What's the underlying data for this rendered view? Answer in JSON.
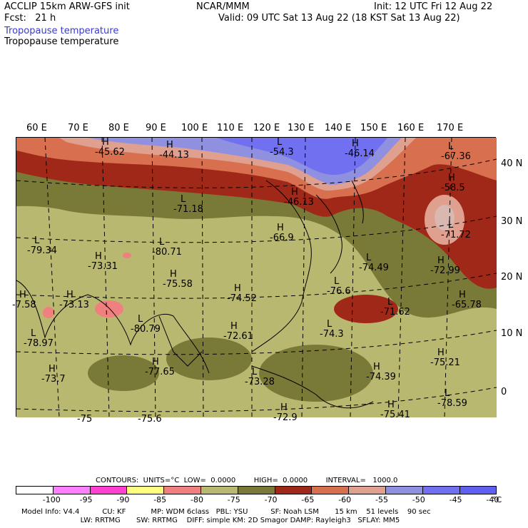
{
  "header": {
    "model": "ACCLIP 15km ARW-GFS init",
    "fcst": "Fcst:   21 h",
    "org": "NCAR/MMM",
    "init": "Init: 12 UTC Fri 12 Aug 22",
    "valid": "Valid: 09 UTC Sat 13 Aug 22 (18 KST Sat 13 Aug 22)",
    "field1": "Tropopause temperature",
    "field2": "Tropopause temperature"
  },
  "longitude_labels": [
    "60 E",
    "70 E",
    "80 E",
    "90 E",
    "100 E",
    "110 E",
    "120 E",
    "130 E",
    "140 E",
    "150 E",
    "160 E",
    "170 E"
  ],
  "latitude_labels": [
    "40 N",
    "30 N",
    "20 N",
    "10 N",
    "0"
  ],
  "map_labels": [
    {
      "t": "H",
      "v": "-45.62"
    },
    {
      "t": "H",
      "v": "-44.13"
    },
    {
      "t": "L",
      "v": "-54.3"
    },
    {
      "t": "H",
      "v": "-46.14"
    },
    {
      "t": "L",
      "v": "-67.36"
    },
    {
      "t": "H",
      "v": "-58.5"
    },
    {
      "t": "H",
      "v": "-46.13"
    },
    {
      "t": "L",
      "v": "-71.18"
    },
    {
      "t": "H",
      "v": "-66.9"
    },
    {
      "t": "L",
      "v": "-71.72"
    },
    {
      "t": "L",
      "v": "-79.34"
    },
    {
      "t": "L",
      "v": "-80.71"
    },
    {
      "t": "H",
      "v": "-73.31"
    },
    {
      "t": "L",
      "v": "-74.49"
    },
    {
      "t": "H",
      "v": "-72.99"
    },
    {
      "t": "H",
      "v": "-75.58"
    },
    {
      "t": "H",
      "v": "-74.52"
    },
    {
      "t": "L",
      "v": "-76.6"
    },
    {
      "t": "H",
      "v": "-7.58"
    },
    {
      "t": "H",
      "v": "-73.13"
    },
    {
      "t": "L",
      "v": "-71.62"
    },
    {
      "t": "H",
      "v": "-65.78"
    },
    {
      "t": "L",
      "v": "-80.79"
    },
    {
      "t": "L",
      "v": "-74.3"
    },
    {
      "t": "H",
      "v": "-72.61"
    },
    {
      "t": "L",
      "v": "-78.97"
    },
    {
      "t": "H",
      "v": "-75.21"
    },
    {
      "t": "H",
      "v": "-77.65"
    },
    {
      "t": "H",
      "v": "-73.7"
    },
    {
      "t": "H",
      "v": "-74.39"
    },
    {
      "t": "L",
      "v": "-73.28"
    },
    {
      "t": "L",
      "v": "-78.59"
    },
    {
      "t": "",
      "v": "-75"
    },
    {
      "t": "",
      "v": "-75.6"
    },
    {
      "t": "H",
      "v": "-72.9"
    },
    {
      "t": "H",
      "v": "-75.41"
    }
  ],
  "contours_line": "CONTOURS:  UNITS=°C  LOW=  0.0000        HIGH=  0.0000        INTERVAL=   1000.0",
  "colorbar": {
    "colors": [
      "#ffffff",
      "#ff80ff",
      "#ff40d0",
      "#ffff80",
      "#f08080",
      "#b8b870",
      "#7a7a38",
      "#a02818",
      "#d87050",
      "#e0a090",
      "#9090e0",
      "#7070f0",
      "#6060f0"
    ],
    "ticks": [
      "-100",
      "-95",
      "-90",
      "-85",
      "-80",
      "-75",
      "-70",
      "-65",
      "-60",
      "-55",
      "-50",
      "-45",
      "-40"
    ],
    "unit": "°C"
  },
  "footer": {
    "line1": "Model Info: V4.4          CU: KF           MP: WDM 6class   PBL: YSU          SF: Noah LSM       15 km    51 levels    90 sec",
    "line2": "                          LW: RRTMG       SW: RRTMG    DIFF: simple KM: 2D Smagor DAMP: Rayleigh3   SFLAY: MM5"
  }
}
